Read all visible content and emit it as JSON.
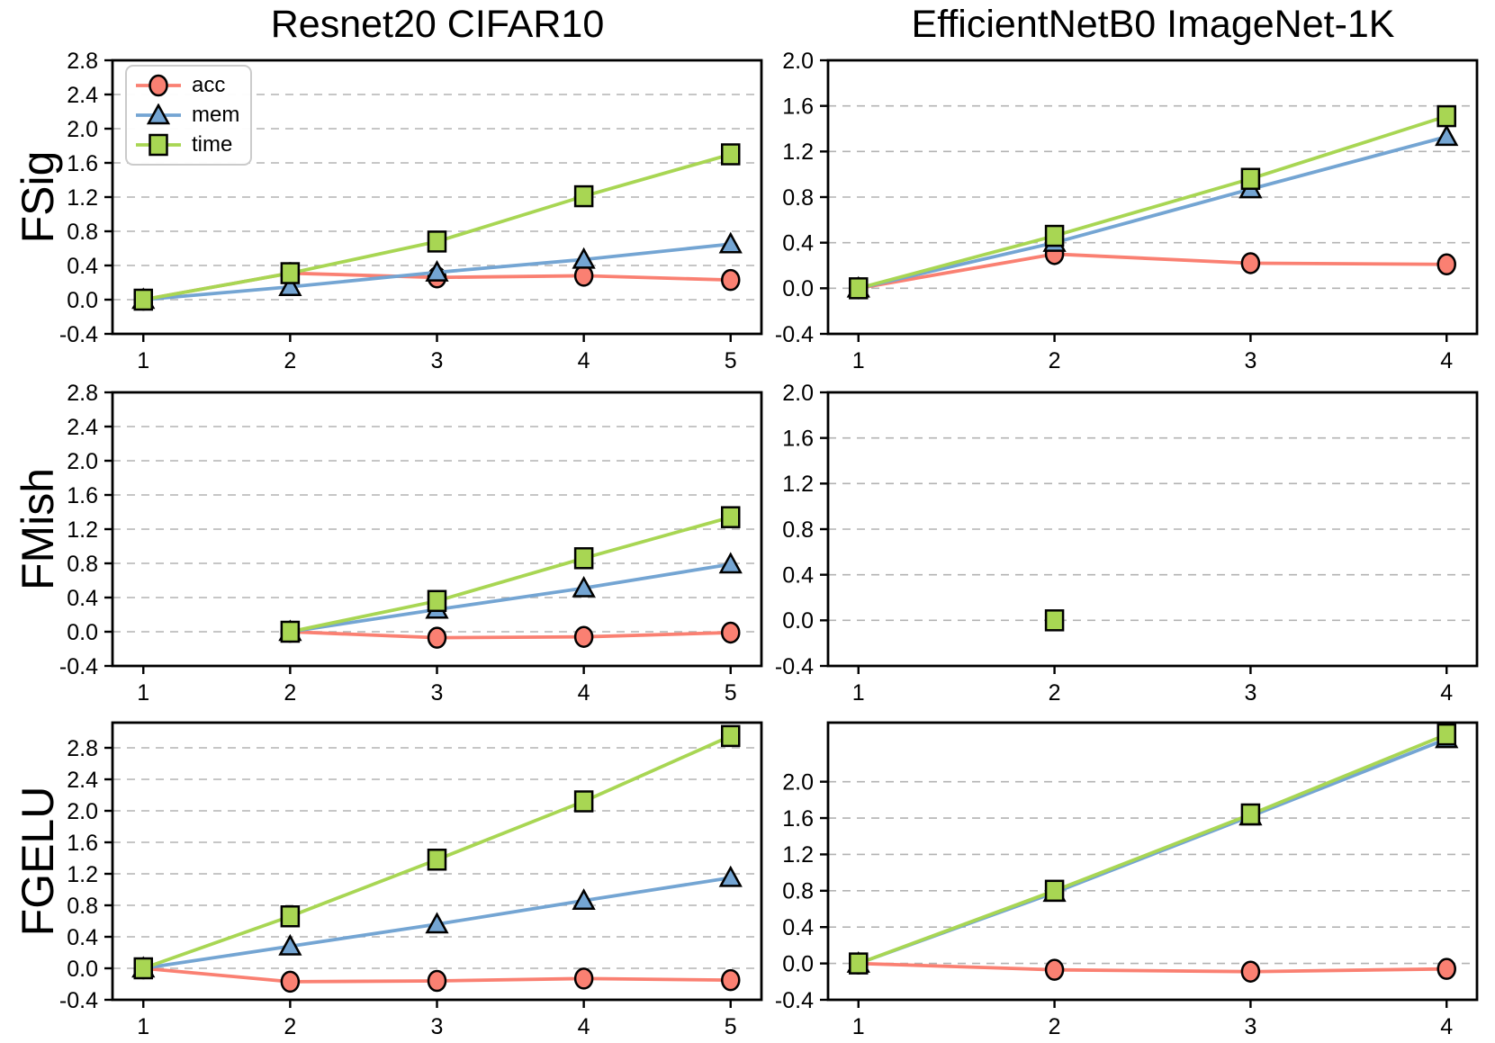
{
  "figure": {
    "background": "#ffffff"
  },
  "titles": [
    "Resnet20 CIFAR10",
    "EfficientNetB0 ImageNet-1K"
  ],
  "row_labels": [
    "FSig",
    "FMish",
    "FGELU"
  ],
  "legend": {
    "items": [
      {
        "series": "acc",
        "label": "acc"
      },
      {
        "series": "mem",
        "label": "mem"
      },
      {
        "series": "time",
        "label": "time"
      }
    ]
  },
  "series_styles": {
    "acc": {
      "color": "#fa8072",
      "marker": "circle"
    },
    "mem": {
      "color": "#74a5d3",
      "marker": "triangle"
    },
    "time": {
      "color": "#a8d653",
      "marker": "square"
    }
  },
  "axis": {
    "grid_color": "#b3b3b3",
    "axis_color": "#000000",
    "tick_label_color": "#000000"
  },
  "chart_data": [
    {
      "id": "fsig-resnet20-cifar10",
      "type": "line",
      "title": "Resnet20 CIFAR10",
      "row_label": "FSig",
      "legend_position": "upper left",
      "grid": true,
      "xlim": [
        0.79,
        5.21
      ],
      "ylim": [
        -0.4,
        2.8
      ],
      "xticks": [
        1,
        2,
        3,
        4,
        5
      ],
      "yticks": [
        -0.4,
        0.0,
        0.4,
        0.8,
        1.2,
        1.6,
        2.0,
        2.4,
        2.8
      ],
      "series": [
        {
          "name": "acc",
          "x": [
            1,
            2,
            3,
            4,
            5
          ],
          "y": [
            0.0,
            0.31,
            0.26,
            0.28,
            0.23
          ]
        },
        {
          "name": "mem",
          "x": [
            1,
            2,
            3,
            4,
            5
          ],
          "y": [
            0.0,
            0.15,
            0.32,
            0.47,
            0.65
          ]
        },
        {
          "name": "time",
          "x": [
            1,
            2,
            3,
            4,
            5
          ],
          "y": [
            0.0,
            0.31,
            0.68,
            1.21,
            1.7
          ]
        }
      ]
    },
    {
      "id": "fsig-efficientnetb0-imagenet1k",
      "type": "line",
      "title": "EfficientNetB0 ImageNet-1K",
      "row_label": "FSig",
      "grid": true,
      "xlim": [
        0.845,
        4.155
      ],
      "ylim": [
        -0.4,
        2.0
      ],
      "xticks": [
        1,
        2,
        3,
        4
      ],
      "yticks": [
        -0.4,
        0.0,
        0.4,
        0.8,
        1.2,
        1.6,
        2.0
      ],
      "series": [
        {
          "name": "acc",
          "x": [
            1,
            2,
            3,
            4
          ],
          "y": [
            0.0,
            0.3,
            0.22,
            0.21
          ]
        },
        {
          "name": "mem",
          "x": [
            1,
            2,
            3,
            4
          ],
          "y": [
            0.0,
            0.4,
            0.87,
            1.33
          ]
        },
        {
          "name": "time",
          "x": [
            1,
            2,
            3,
            4
          ],
          "y": [
            0.0,
            0.46,
            0.96,
            1.51
          ]
        }
      ]
    },
    {
      "id": "fmish-resnet20-cifar10",
      "type": "line",
      "row_label": "FMish",
      "grid": true,
      "xlim": [
        0.79,
        5.21
      ],
      "ylim": [
        -0.4,
        2.8
      ],
      "xticks": [
        1,
        2,
        3,
        4,
        5
      ],
      "yticks": [
        -0.4,
        0.0,
        0.4,
        0.8,
        1.2,
        1.6,
        2.0,
        2.4,
        2.8
      ],
      "series": [
        {
          "name": "acc",
          "x": [
            2,
            3,
            4,
            5
          ],
          "y": [
            0.0,
            -0.07,
            -0.06,
            -0.01
          ]
        },
        {
          "name": "mem",
          "x": [
            2,
            3,
            4,
            5
          ],
          "y": [
            0.0,
            0.26,
            0.51,
            0.79
          ]
        },
        {
          "name": "time",
          "x": [
            2,
            3,
            4,
            5
          ],
          "y": [
            0.0,
            0.36,
            0.86,
            1.34
          ]
        }
      ]
    },
    {
      "id": "fmish-efficientnetb0-imagenet1k",
      "type": "line",
      "row_label": "FMish",
      "grid": true,
      "xlim": [
        0.845,
        4.155
      ],
      "ylim": [
        -0.4,
        2.0
      ],
      "xticks": [
        1,
        2,
        3,
        4
      ],
      "yticks": [
        -0.4,
        0.0,
        0.4,
        0.8,
        1.2,
        1.6,
        2.0
      ],
      "series": [
        {
          "name": "time",
          "x": [
            2
          ],
          "y": [
            0.0
          ]
        }
      ]
    },
    {
      "id": "fgelu-resnet20-cifar10",
      "type": "line",
      "row_label": "FGELU",
      "grid": true,
      "xlim": [
        0.79,
        5.21
      ],
      "ylim": [
        -0.4,
        3.12
      ],
      "xticks": [
        1,
        2,
        3,
        4,
        5
      ],
      "yticks": [
        -0.4,
        0.0,
        0.4,
        0.8,
        1.2,
        1.6,
        2.0,
        2.4,
        2.8
      ],
      "series": [
        {
          "name": "acc",
          "x": [
            1,
            2,
            3,
            4,
            5
          ],
          "y": [
            0.0,
            -0.17,
            -0.16,
            -0.13,
            -0.15
          ]
        },
        {
          "name": "mem",
          "x": [
            1,
            2,
            3,
            4,
            5
          ],
          "y": [
            0.0,
            0.28,
            0.56,
            0.86,
            1.15
          ]
        },
        {
          "name": "time",
          "x": [
            1,
            2,
            3,
            4,
            5
          ],
          "y": [
            0.0,
            0.66,
            1.38,
            2.12,
            2.95
          ]
        }
      ]
    },
    {
      "id": "fgelu-efficientnetb0-imagenet1k",
      "type": "line",
      "row_label": "FGELU",
      "grid": true,
      "xlim": [
        0.845,
        4.155
      ],
      "ylim": [
        -0.4,
        2.65
      ],
      "xticks": [
        1,
        2,
        3,
        4
      ],
      "yticks": [
        -0.4,
        0.0,
        0.4,
        0.8,
        1.2,
        1.6,
        2.0
      ],
      "series": [
        {
          "name": "acc",
          "x": [
            1,
            2,
            3,
            4
          ],
          "y": [
            0.0,
            -0.07,
            -0.09,
            -0.06
          ]
        },
        {
          "name": "mem",
          "x": [
            1,
            2,
            3,
            4
          ],
          "y": [
            0.0,
            0.78,
            1.62,
            2.47
          ]
        },
        {
          "name": "time",
          "x": [
            1,
            2,
            3,
            4
          ],
          "y": [
            0.0,
            0.8,
            1.64,
            2.52
          ]
        }
      ]
    }
  ]
}
